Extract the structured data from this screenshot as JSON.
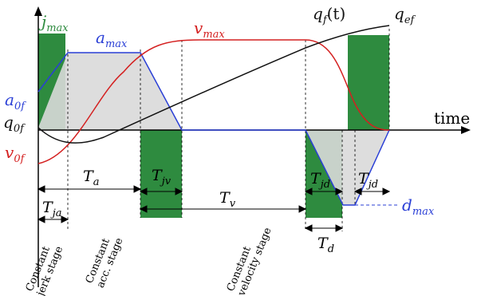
{
  "colors": {
    "jerk": "#2e8b3f",
    "accel": "#2a3fd6",
    "velocity": "#d42020",
    "position": "#111111",
    "shade": "#d9d9d9",
    "axis": "#000000"
  },
  "labels": {
    "jmax": {
      "base": "j",
      "sub": "max"
    },
    "amax": {
      "base": "a",
      "sub": "max"
    },
    "vmax": {
      "base": "v",
      "sub": "max"
    },
    "qf": {
      "base": "q",
      "sub": "f",
      "tail": "(t)"
    },
    "qef": {
      "base": "q",
      "sub": "ef"
    },
    "a0f": {
      "base": "a",
      "sub": "0f"
    },
    "q0f": {
      "base": "q",
      "sub": "0f"
    },
    "v0f": {
      "base": "v",
      "sub": "0f"
    },
    "time": "time",
    "dmax": {
      "base": "d",
      "sub": "max"
    }
  },
  "intervals": {
    "Ta": {
      "base": "T",
      "sub": "a"
    },
    "Tjv": {
      "base": "T",
      "sub": "jv"
    },
    "Tv": {
      "base": "T",
      "sub": "v"
    },
    "Tjd1": {
      "base": "T",
      "sub": "jd"
    },
    "Tjd2": {
      "base": "T",
      "sub": "jd"
    },
    "Tja": {
      "base": "T",
      "sub": "ja"
    },
    "Td": {
      "base": "T",
      "sub": "d"
    }
  },
  "stages": {
    "jerk": [
      "Constant",
      "jerk stage"
    ],
    "acc": [
      "Constant",
      "acc. stage"
    ],
    "velocity": [
      "Constant",
      "velocity stage"
    ]
  }
}
